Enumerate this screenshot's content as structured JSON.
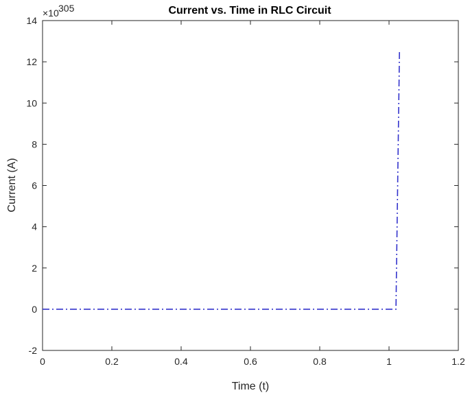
{
  "chart_data": {
    "type": "line",
    "title": "Current vs. Time in RLC Circuit",
    "xlabel": "Time (t)",
    "ylabel": "Current (A)",
    "xlim": [
      0,
      1.2
    ],
    "ylim": [
      -2,
      14
    ],
    "xticks": [
      "0",
      "0.2",
      "0.4",
      "0.6",
      "0.8",
      "1",
      "1.2"
    ],
    "yticks": [
      "-2",
      "0",
      "2",
      "4",
      "6",
      "8",
      "10",
      "12",
      "14"
    ],
    "y_exponent_base": "×10",
    "y_exponent_power": "305",
    "series": [
      {
        "color": "#3333cc",
        "linestyle": "dash-dot",
        "x": [
          0,
          0.2,
          0.4,
          0.6,
          0.8,
          1.0,
          1.02,
          1.03
        ],
        "y": [
          0,
          0,
          0,
          0,
          0,
          0,
          0,
          12.5
        ]
      }
    ],
    "grid": false,
    "box": true
  }
}
